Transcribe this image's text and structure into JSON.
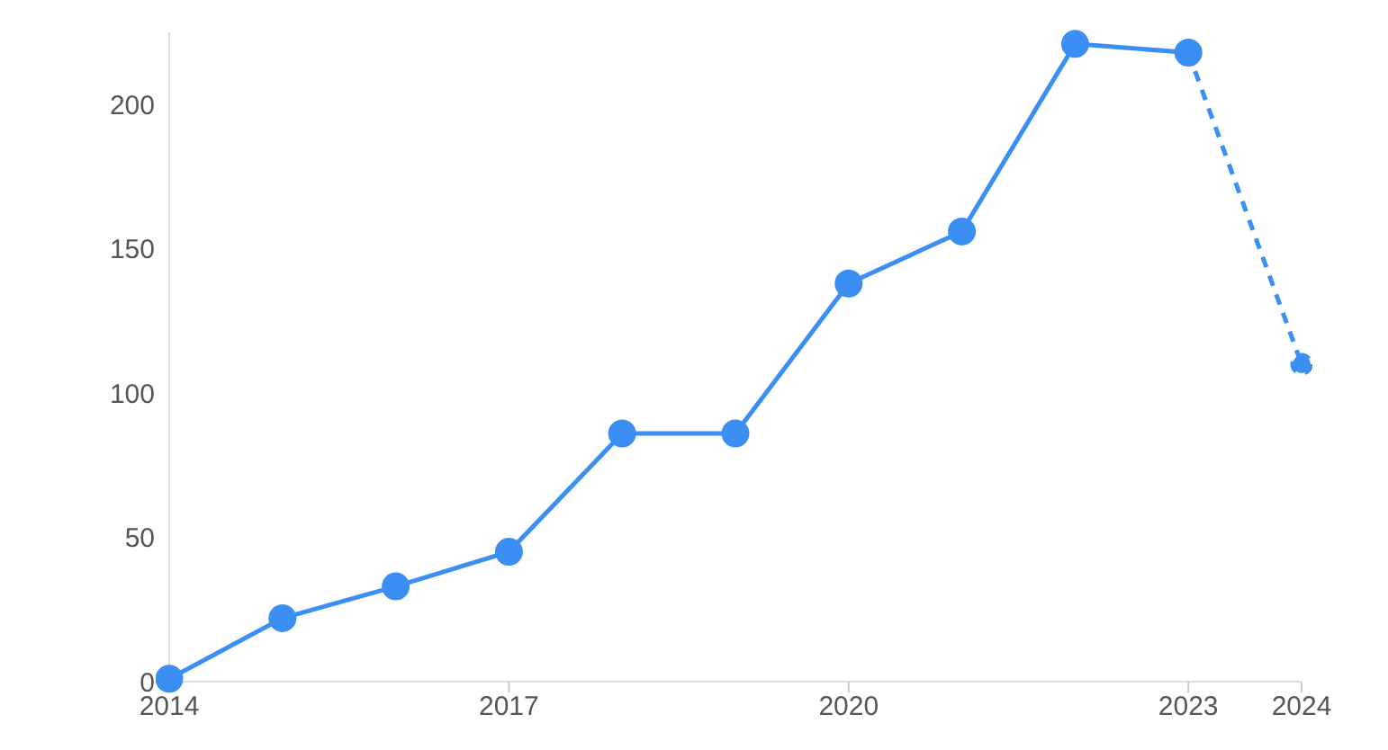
{
  "chart_data": {
    "type": "line",
    "xlim": [
      2014,
      2024
    ],
    "xticks": [
      2014,
      2017,
      2020,
      2023,
      2024
    ],
    "ylim": [
      0,
      225
    ],
    "yticks": [
      0,
      50,
      100,
      150,
      200
    ],
    "grid": false,
    "legend": false,
    "marker": "circle",
    "series": [
      {
        "color": "#3b8ff3",
        "line_style": "solid",
        "x": [
          2014,
          2015,
          2016,
          2017,
          2018,
          2019,
          2020,
          2021,
          2022,
          2023
        ],
        "values": [
          1,
          22,
          33,
          45,
          86,
          86,
          138,
          156,
          221,
          218
        ]
      },
      {
        "color": "#3b8ff3",
        "line_style": "dashed",
        "x": [
          2023,
          2024
        ],
        "values": [
          218,
          110
        ]
      }
    ]
  }
}
